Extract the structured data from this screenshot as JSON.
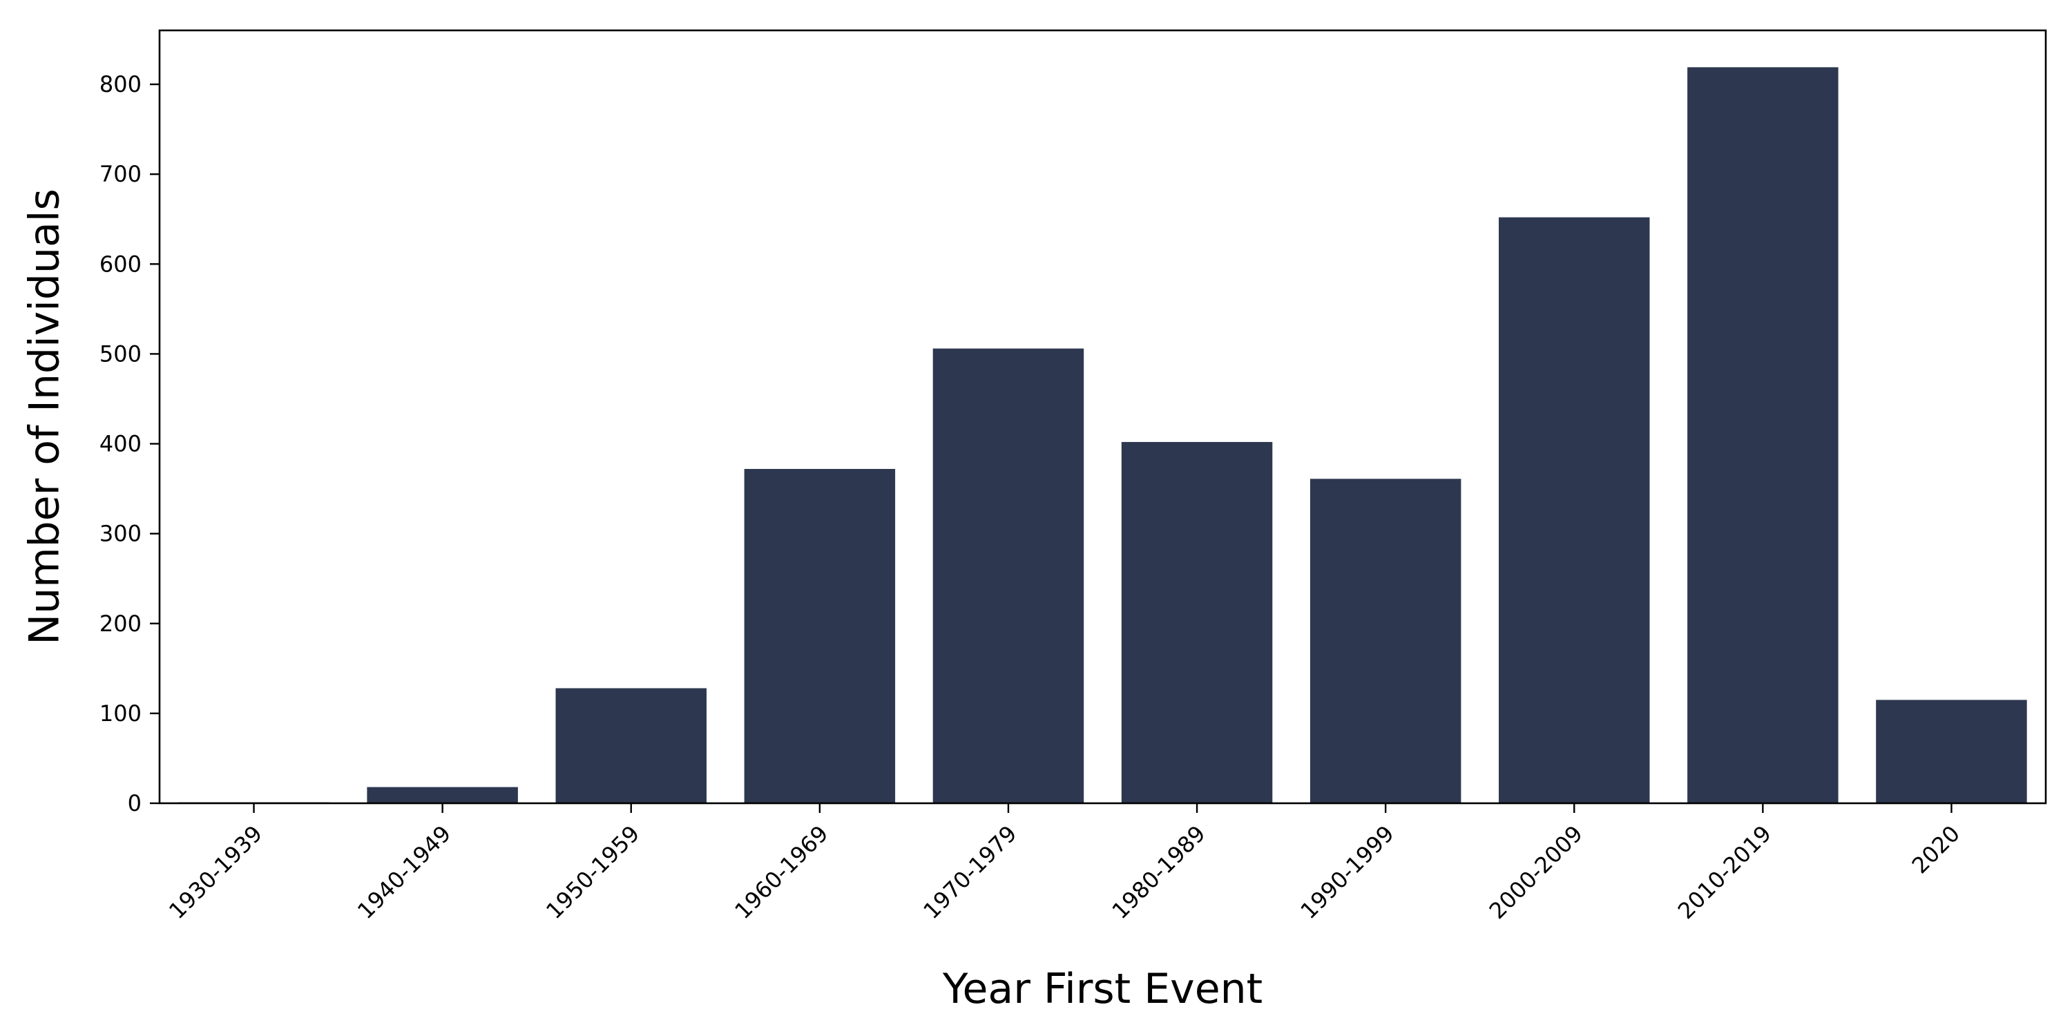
{
  "chart_data": {
    "type": "bar",
    "title": "",
    "xlabel": "Year First Event",
    "ylabel": "Number of Individuals",
    "categories": [
      "1930-1939",
      "1940-1949",
      "1950-1959",
      "1960-1969",
      "1970-1979",
      "1980-1989",
      "1990-1999",
      "2000-2009",
      "2010-2019",
      "2020"
    ],
    "values": [
      1,
      18,
      128,
      372,
      506,
      402,
      361,
      652,
      819,
      115
    ],
    "ylim": [
      0,
      860
    ],
    "yticks": [
      0,
      100,
      200,
      300,
      400,
      500,
      600,
      700,
      800
    ],
    "bar_color": "#2d3850",
    "grid": false,
    "legend": "none"
  }
}
